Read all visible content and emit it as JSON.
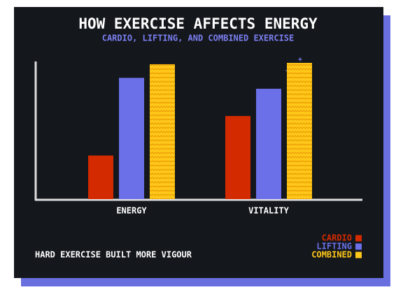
{
  "chart_data": {
    "type": "bar",
    "title": "HOW EXERCISE AFFECTS ENERGY",
    "subtitle": "CARDIO, LIFTING, AND COMBINED EXERCISE",
    "annotation": "HARD EXERCISE BUILT MORE VIGOUR",
    "categories": [
      "ENERGY",
      "VITALITY"
    ],
    "series": [
      {
        "name": "CARDIO",
        "color": "#d42a00",
        "values": [
          32,
          61
        ]
      },
      {
        "name": "LIFTING",
        "color": "#6b70e8",
        "values": [
          89,
          81
        ]
      },
      {
        "name": "COMBINED",
        "color": "#ffc81a",
        "values": [
          99,
          100
        ]
      }
    ],
    "ylim": [
      0,
      100
    ],
    "legend": "bottom-right"
  }
}
